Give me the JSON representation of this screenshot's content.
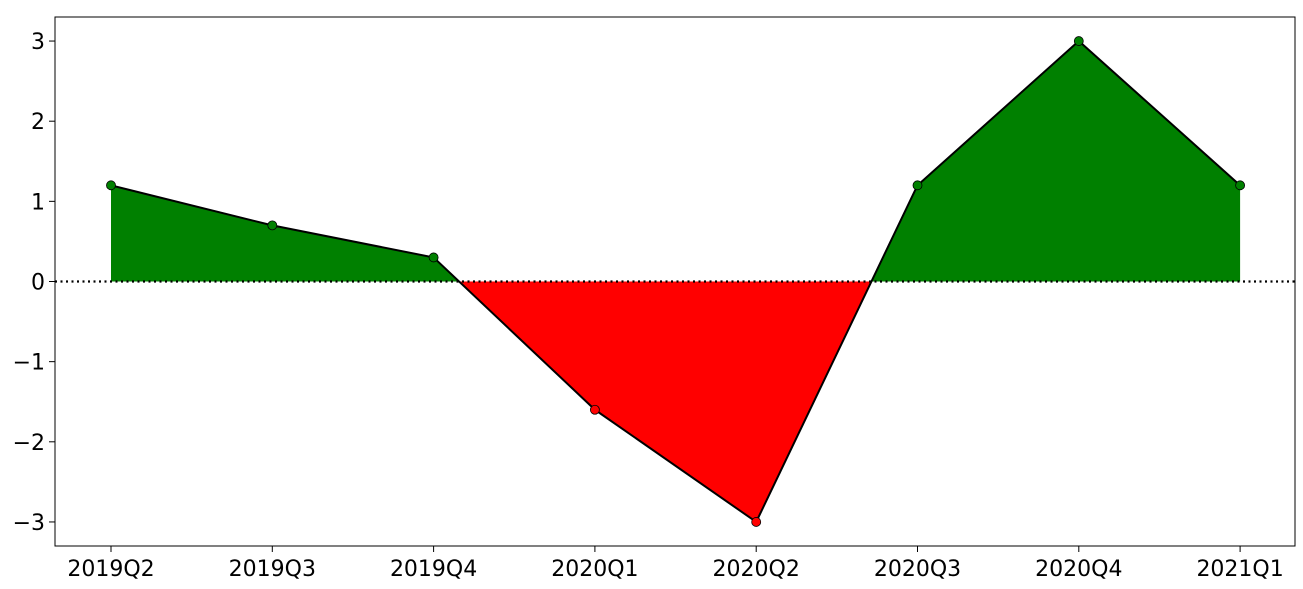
{
  "chart_data": {
    "type": "area",
    "title": "",
    "xlabel": "",
    "ylabel": "",
    "categories": [
      "2019Q2",
      "2019Q3",
      "2019Q4",
      "2020Q1",
      "2020Q2",
      "2020Q3",
      "2020Q4",
      "2021Q1"
    ],
    "values": [
      1.2,
      0.7,
      0.3,
      -1.6,
      -3.0,
      1.2,
      3.0,
      1.2
    ],
    "ylim": [
      -3.3,
      3.3
    ],
    "yticks": [
      -3,
      -2,
      -1,
      0,
      1,
      2,
      3
    ],
    "ytick_labels": [
      "−3",
      "−2",
      "−1",
      "0",
      "1",
      "2",
      "3"
    ],
    "baseline": 0,
    "baseline_style": "dotted",
    "grid": false,
    "legend": "none",
    "colors": {
      "positive": "#008000",
      "negative": "#ff0000",
      "line": "#000000"
    }
  }
}
